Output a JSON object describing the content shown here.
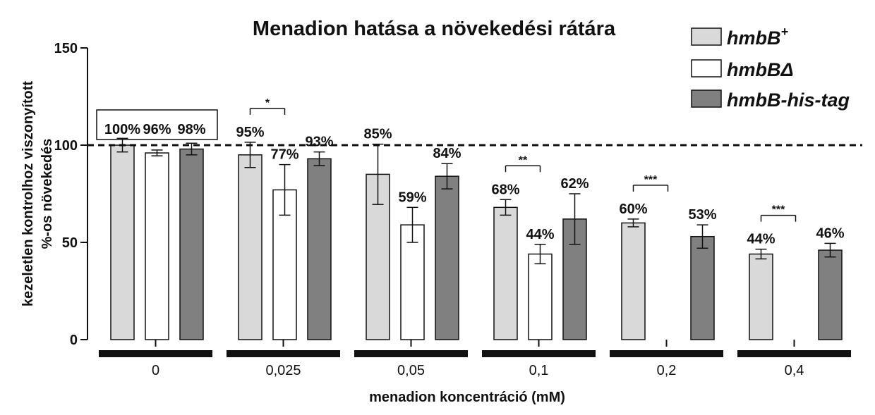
{
  "chart_data": {
    "type": "bar",
    "title": "Menadion hatása a növekedési rátára",
    "xlabel": "menadion koncentráció (mM)",
    "ylabel_line1": "kezeletlen kontrolhoz viszonyított",
    "ylabel_line2": "%-os növekedés",
    "ylim": [
      0,
      150
    ],
    "yticks": [
      "0",
      "50",
      "100",
      "150"
    ],
    "reference_line": 100,
    "categories": [
      "0",
      "0,025",
      "0,05",
      "0,1",
      "0,2",
      "0,4"
    ],
    "series": [
      {
        "name": "hmbB",
        "name_sup": "+",
        "color": "#d9d9d9",
        "values": [
          100,
          95,
          85,
          68,
          60,
          44
        ],
        "errors": [
          3.5,
          6.5,
          15.5,
          4,
          2,
          2.5
        ],
        "labels": [
          "100%",
          "95%",
          "85%",
          "68%",
          "60%",
          "44%"
        ]
      },
      {
        "name": "hmbB",
        "name_suffix": "Δ",
        "color": "#ffffff",
        "values": [
          96,
          77,
          59,
          44,
          null,
          null
        ],
        "errors": [
          1.5,
          13,
          9,
          5,
          null,
          null
        ],
        "labels": [
          "96%",
          "77%",
          "59%",
          "44%",
          null,
          null
        ]
      },
      {
        "name": "hmbB-his-tag",
        "color": "#808080",
        "values": [
          98,
          93,
          84,
          62,
          53,
          46
        ],
        "errors": [
          3,
          3.5,
          6.5,
          13,
          6,
          3.5
        ],
        "labels": [
          "98%",
          "93%",
          "84%",
          "62%",
          "53%",
          "46%"
        ]
      }
    ],
    "significance": [
      {
        "category_index": 1,
        "label": "*"
      },
      {
        "category_index": 3,
        "label": "**"
      },
      {
        "category_index": 4,
        "label": "***"
      },
      {
        "category_index": 5,
        "label": "***"
      }
    ],
    "legend_position": "top-right",
    "boxed_category_index": 0
  }
}
